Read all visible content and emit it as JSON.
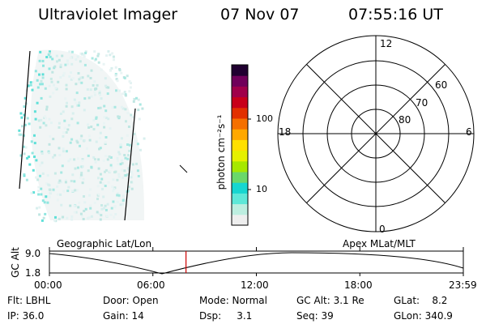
{
  "header": {
    "instrument": "Ultraviolet Imager",
    "date": "07 Nov 07",
    "time": "07:55:16 UT"
  },
  "colorbar": {
    "unit_label": "photon cm⁻²s⁻¹",
    "ticks": [
      "100",
      "10"
    ],
    "scale": "log",
    "colors": [
      "#eeeeee",
      "#bdeee0",
      "#5ee8d8",
      "#16d6d0",
      "#6ad86a",
      "#a6e800",
      "#e6f000",
      "#ffe000",
      "#ffa800",
      "#f57000",
      "#e23000",
      "#c8001a",
      "#a0004a",
      "#70005a",
      "#200030"
    ]
  },
  "polar_plot": {
    "mlt_labels": [
      "12",
      "18",
      "6",
      "0"
    ],
    "lat_labels": [
      "60",
      "70",
      "80"
    ]
  },
  "timeline": {
    "ylabel": "GC Alt",
    "yticks": [
      "9.0",
      "1.8"
    ],
    "left_title": "Geographic Lat/Lon",
    "right_title": "Apex MLat/MLT",
    "xticks": [
      "00:00",
      "06:00",
      "12:00",
      "18:00",
      "23:59"
    ],
    "marker_hours": 7.92,
    "marker_color": "#cc0000"
  },
  "footer": {
    "row1": [
      "Flt: LBHL",
      "Door: Open",
      "Mode: Normal",
      "GC Alt: 3.1 Re",
      "GLat:    8.2"
    ],
    "row2": [
      "IP: 36.0",
      "Gain: 14",
      "Dsp:     3.1",
      "Seq: 39",
      "GLon: 340.9"
    ]
  }
}
